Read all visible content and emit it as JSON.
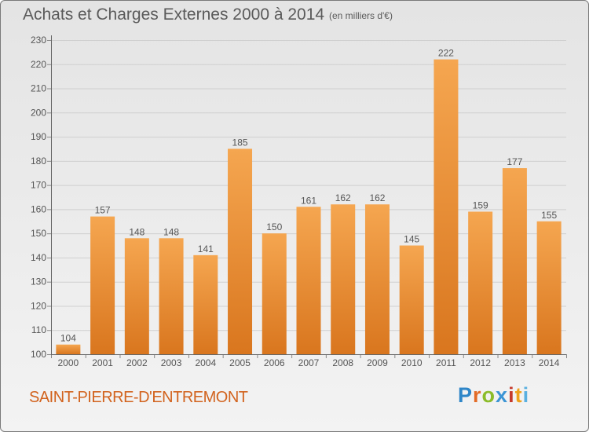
{
  "header": {
    "title": "Achats et Charges Externes 2000 à 2014",
    "unit": "(en milliers d'€)"
  },
  "footer": {
    "commune": "SAINT-PIERRE-D'ENTREMONT",
    "logo": "Proxiti"
  },
  "colors": {
    "bar_light": "#f5a650",
    "bar_dark": "#d9761e",
    "title": "#5a5a5a",
    "commune": "#d2631e",
    "logo_letters": [
      "#2f86c8",
      "#e36b26",
      "#8cbc2a",
      "#3c95d5",
      "#c63a2c",
      "#f0a21c",
      "#5ab0e0"
    ]
  },
  "chart_data": {
    "type": "bar",
    "title": "Achats et Charges Externes 2000 à 2014",
    "subtitle": "(en milliers d'€)",
    "categories": [
      "2000",
      "2001",
      "2002",
      "2003",
      "2004",
      "2005",
      "2006",
      "2007",
      "2008",
      "2009",
      "2010",
      "2011",
      "2012",
      "2013",
      "2014"
    ],
    "values": [
      104,
      157,
      148,
      148,
      141,
      185,
      150,
      161,
      162,
      162,
      145,
      222,
      159,
      177,
      155
    ],
    "ylim": [
      100,
      230
    ],
    "yticks": [
      100,
      110,
      120,
      130,
      140,
      150,
      160,
      170,
      180,
      190,
      200,
      210,
      220,
      230
    ],
    "grid": true,
    "data_labels": true
  }
}
